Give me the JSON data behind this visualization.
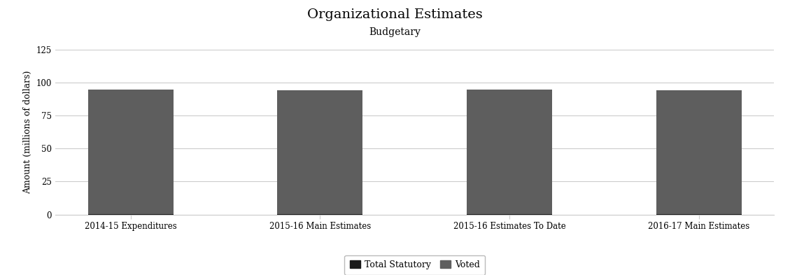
{
  "title": "Organizational Estimates",
  "subtitle": "Budgetary",
  "ylabel": "Amount (millions of dollars)",
  "categories": [
    "2014-15 Expenditures",
    "2015-16 Main Estimates",
    "2015-16 Estimates To Date",
    "2016-17 Main Estimates"
  ],
  "statutory_values": [
    0.5,
    0.5,
    0.5,
    0.5
  ],
  "voted_values": [
    94.0,
    93.7,
    94.1,
    93.8
  ],
  "statutory_color": "#1a1a1a",
  "voted_color": "#5e5e5e",
  "ylim": [
    0,
    125
  ],
  "yticks": [
    0,
    25,
    50,
    75,
    100,
    125
  ],
  "bar_width": 0.45,
  "title_fontsize": 14,
  "subtitle_fontsize": 10,
  "ylabel_fontsize": 9,
  "tick_fontsize": 8.5,
  "legend_fontsize": 9,
  "background_color": "#ffffff",
  "grid_color": "#cccccc",
  "font_family": "DejaVu Serif"
}
